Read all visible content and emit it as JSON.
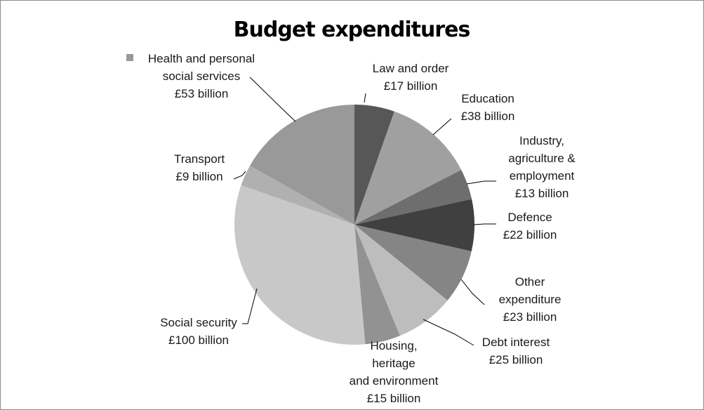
{
  "chart_data": {
    "type": "pie",
    "title": "Budget expenditures",
    "legend": {
      "position": "top-left",
      "entry": "Health and personal social services"
    },
    "slices": [
      {
        "name": "Law and order",
        "value": 17,
        "value_label": "£17 billion",
        "label_lines": [
          "Law and order",
          "£17 billion"
        ],
        "color": "#575757"
      },
      {
        "name": "Education",
        "value": 38,
        "value_label": "£38 billion",
        "label_lines": [
          "Education",
          "£38 billion"
        ],
        "color": "#a0a0a0"
      },
      {
        "name": "Industry, agriculture & employment",
        "value": 13,
        "value_label": "£13 billion",
        "label_lines": [
          "Industry,",
          "agriculture &",
          "employment",
          "£13 billion"
        ],
        "color": "#6e6e6e"
      },
      {
        "name": "Defence",
        "value": 22,
        "value_label": "£22 billion",
        "label_lines": [
          "Defence",
          "£22 billion"
        ],
        "color": "#404040"
      },
      {
        "name": "Other expenditure",
        "value": 23,
        "value_label": "£23 billion",
        "label_lines": [
          "Other",
          "expenditure",
          "£23 billion"
        ],
        "color": "#858585"
      },
      {
        "name": "Debt interest",
        "value": 25,
        "value_label": "£25 billion",
        "label_lines": [
          "Debt interest",
          "£25 billion"
        ],
        "color": "#bdbdbd"
      },
      {
        "name": "Housing, heritage and environment",
        "value": 15,
        "value_label": "£15 billion",
        "label_lines": [
          "Housing,",
          "heritage",
          "and environment",
          "£15 billion"
        ],
        "color": "#929292"
      },
      {
        "name": "Social security",
        "value": 100,
        "value_label": "£100 billion",
        "label_lines": [
          "Social security",
          "£100 billion"
        ],
        "color": "#c8c8c8"
      },
      {
        "name": "Transport",
        "value": 9,
        "value_label": "£9 billion",
        "label_lines": [
          "Transport",
          "£9 billion"
        ],
        "color": "#b0b0b0"
      },
      {
        "name": "Health and personal social services",
        "value": 53,
        "value_label": "£53 billion",
        "label_lines": [
          "Health and personal",
          "social services",
          "£53 billion"
        ],
        "color": "#999999"
      }
    ]
  }
}
